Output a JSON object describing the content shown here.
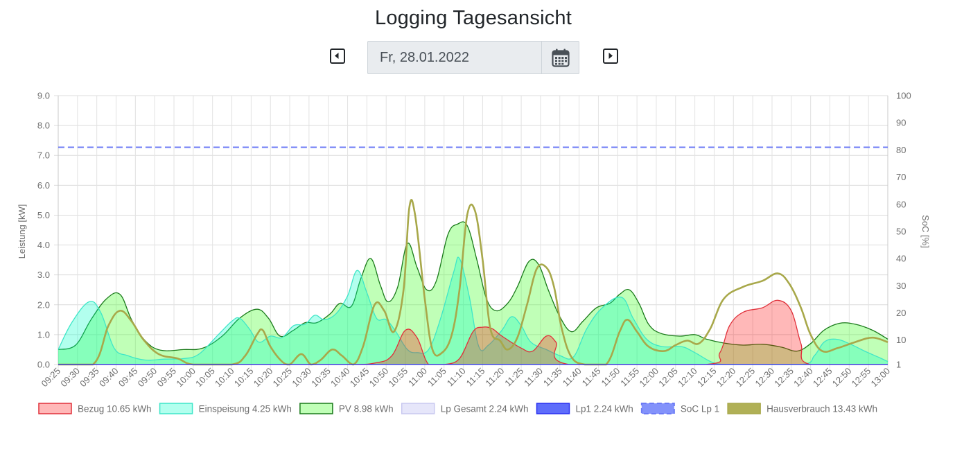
{
  "page": {
    "title": "Logging Tagesansicht"
  },
  "date_picker": {
    "value": "Fr, 28.01.2022"
  },
  "icons": {
    "prev": "caret-left-square-icon",
    "next": "caret-right-square-icon",
    "calendar": "calendar-icon"
  },
  "chart_data": {
    "type": "area",
    "title": "",
    "ylabel": "Leistung [kW]",
    "y2label": "SoC [%]",
    "ylim": [
      0,
      9
    ],
    "y_ticks": [
      "0.0",
      "1.0",
      "2.0",
      "3.0",
      "4.0",
      "5.0",
      "6.0",
      "7.0",
      "8.0",
      "9.0"
    ],
    "y2_ticks": [
      "1",
      "10",
      "20",
      "30",
      "40",
      "50",
      "60",
      "70",
      "80",
      "90",
      "100"
    ],
    "y2_tick_values": [
      1,
      10,
      20,
      30,
      40,
      50,
      60,
      70,
      80,
      90,
      100
    ],
    "y2lim": [
      1,
      100
    ],
    "grid": true,
    "legend_position": "bottom",
    "x_labels": [
      "09:25",
      "09:30",
      "09:35",
      "09:40",
      "09:45",
      "09:50",
      "09:55",
      "10:00",
      "10:05",
      "10:10",
      "10:15",
      "10:20",
      "10:25",
      "10:30",
      "10:35",
      "10:40",
      "10:45",
      "10:50",
      "10:55",
      "11:00",
      "11:05",
      "11:10",
      "11:15",
      "11:20",
      "11:25",
      "11:30",
      "11:35",
      "11:40",
      "11:45",
      "11:50",
      "11:55",
      "12:00",
      "12:05",
      "12:10",
      "12:15",
      "12:20",
      "12:25",
      "12:30",
      "12:35",
      "12:40",
      "12:45",
      "12:50",
      "12:55",
      "13:00"
    ],
    "series": [
      {
        "name": "Bezug 10.65 kWh",
        "axis": "left",
        "fill": "rgba(255,0,0,0.28)",
        "stroke": "#e0303a",
        "dash": false,
        "fill_area": true,
        "values": [
          [
            0,
            0
          ],
          [
            5,
            0
          ],
          [
            10,
            0
          ],
          [
            15,
            0
          ],
          [
            16.5,
            0.06
          ],
          [
            17.3,
            0.3
          ],
          [
            18,
            1.15
          ],
          [
            18.6,
            0.9
          ],
          [
            19.2,
            0
          ],
          [
            20,
            0
          ],
          [
            20.8,
            0.2
          ],
          [
            21.5,
            1.1
          ],
          [
            22,
            1.25
          ],
          [
            22.5,
            1.2
          ],
          [
            23,
            0.95
          ],
          [
            24,
            0.55
          ],
          [
            24.6,
            0.45
          ],
          [
            25.3,
            0.95
          ],
          [
            25.8,
            0.75
          ],
          [
            26.5,
            0
          ],
          [
            33.5,
            0
          ],
          [
            34.3,
            0.4
          ],
          [
            34.8,
            1.3
          ],
          [
            35.5,
            1.75
          ],
          [
            36.5,
            1.9
          ],
          [
            37.3,
            2.15
          ],
          [
            38,
            1.8
          ],
          [
            38.5,
            0.7
          ],
          [
            39,
            0
          ],
          [
            43,
            0
          ]
        ]
      },
      {
        "name": "Einspeisung 4.25 kWh",
        "axis": "left",
        "fill": "rgba(0,255,200,0.30)",
        "stroke": "#3ee6c8",
        "dash": false,
        "fill_area": true,
        "values": [
          [
            0,
            0.5
          ],
          [
            0.7,
            1.4
          ],
          [
            1.6,
            2.1
          ],
          [
            2.2,
            1.75
          ],
          [
            2.9,
            0.55
          ],
          [
            3.6,
            0.3
          ],
          [
            4.5,
            0.15
          ],
          [
            5.5,
            0.18
          ],
          [
            6.5,
            0.2
          ],
          [
            7.3,
            0.35
          ],
          [
            8.3,
            1.0
          ],
          [
            9,
            1.45
          ],
          [
            9.4,
            1.55
          ],
          [
            9.9,
            1.2
          ],
          [
            10.4,
            0.75
          ],
          [
            11,
            0.95
          ],
          [
            11.6,
            0.9
          ],
          [
            12.2,
            1.3
          ],
          [
            12.8,
            1.35
          ],
          [
            13.3,
            1.65
          ],
          [
            13.8,
            1.5
          ],
          [
            14.4,
            1.7
          ],
          [
            15,
            2.3
          ],
          [
            15.5,
            3.15
          ],
          [
            16,
            2.4
          ],
          [
            16.5,
            1.55
          ],
          [
            17,
            1.5
          ],
          [
            17.5,
            1.1
          ],
          [
            18.1,
            0.5
          ],
          [
            18.6,
            0.4
          ],
          [
            19.2,
            0.5
          ],
          [
            19.8,
            1.5
          ],
          [
            20.5,
            3.1
          ],
          [
            20.8,
            3.55
          ],
          [
            21.3,
            2.3
          ],
          [
            21.8,
            0.6
          ],
          [
            22.3,
            0.65
          ],
          [
            23,
            1.15
          ],
          [
            23.5,
            1.6
          ],
          [
            24,
            1.3
          ],
          [
            24.5,
            0.75
          ],
          [
            25.3,
            0.5
          ],
          [
            26,
            0.3
          ],
          [
            26.7,
            0.25
          ],
          [
            27.4,
            1.2
          ],
          [
            28.2,
            1.9
          ],
          [
            29.2,
            2.25
          ],
          [
            29.8,
            1.55
          ],
          [
            30.5,
            0.85
          ],
          [
            31.3,
            0.6
          ],
          [
            32.3,
            0.6
          ],
          [
            33,
            0.4
          ],
          [
            34,
            0.05
          ],
          [
            35,
            0
          ],
          [
            38.5,
            0
          ],
          [
            39.2,
            0.3
          ],
          [
            39.7,
            0.75
          ],
          [
            40.3,
            0.85
          ],
          [
            41,
            0.7
          ],
          [
            41.8,
            0.45
          ],
          [
            42.5,
            0.25
          ],
          [
            43,
            0.1
          ]
        ]
      },
      {
        "name": "PV 8.98 kWh",
        "axis": "left",
        "fill": "rgba(60,255,30,0.32)",
        "stroke": "#1a7a1a",
        "dash": false,
        "fill_area": true,
        "values": [
          [
            0,
            0.5
          ],
          [
            0.9,
            0.65
          ],
          [
            1.7,
            1.5
          ],
          [
            2.5,
            2.2
          ],
          [
            3.2,
            2.35
          ],
          [
            3.8,
            1.5
          ],
          [
            4.5,
            0.8
          ],
          [
            5.3,
            0.48
          ],
          [
            6.5,
            0.5
          ],
          [
            7.5,
            0.55
          ],
          [
            8.5,
            0.95
          ],
          [
            9.4,
            1.55
          ],
          [
            10.3,
            1.85
          ],
          [
            10.9,
            1.55
          ],
          [
            11.5,
            0.95
          ],
          [
            12.2,
            1.15
          ],
          [
            12.8,
            1.4
          ],
          [
            13.4,
            1.4
          ],
          [
            14.1,
            1.7
          ],
          [
            14.6,
            2.05
          ],
          [
            15.2,
            1.95
          ],
          [
            15.7,
            2.9
          ],
          [
            16.2,
            3.55
          ],
          [
            16.7,
            2.65
          ],
          [
            17.1,
            2.1
          ],
          [
            17.6,
            2.6
          ],
          [
            18.1,
            4.05
          ],
          [
            18.6,
            3.25
          ],
          [
            19.1,
            2.5
          ],
          [
            19.6,
            2.8
          ],
          [
            20.2,
            4.35
          ],
          [
            20.7,
            4.7
          ],
          [
            21.2,
            4.65
          ],
          [
            21.7,
            3.5
          ],
          [
            22.2,
            2.2
          ],
          [
            22.7,
            1.8
          ],
          [
            23.3,
            2.05
          ],
          [
            23.8,
            2.6
          ],
          [
            24.4,
            3.45
          ],
          [
            24.9,
            3.35
          ],
          [
            25.4,
            2.5
          ],
          [
            26,
            1.6
          ],
          [
            26.6,
            1.1
          ],
          [
            27.2,
            1.45
          ],
          [
            27.9,
            1.9
          ],
          [
            28.6,
            2.05
          ],
          [
            29.1,
            2.35
          ],
          [
            29.6,
            2.5
          ],
          [
            30.1,
            2.05
          ],
          [
            30.6,
            1.35
          ],
          [
            31.2,
            1.05
          ],
          [
            32.2,
            0.95
          ],
          [
            33,
            1.0
          ],
          [
            33.6,
            0.85
          ],
          [
            34.5,
            0.72
          ],
          [
            35.5,
            0.65
          ],
          [
            36.5,
            0.68
          ],
          [
            37.5,
            0.58
          ],
          [
            38.3,
            0.45
          ],
          [
            39,
            0.7
          ],
          [
            39.7,
            1.15
          ],
          [
            40.5,
            1.38
          ],
          [
            41.3,
            1.35
          ],
          [
            42.2,
            1.15
          ],
          [
            43,
            0.85
          ]
        ]
      },
      {
        "name": "Lp Gesamt 2.24 kWh",
        "axis": "left",
        "fill": "rgba(200,200,245,0.45)",
        "stroke": "#c8c8f0",
        "dash": false,
        "fill_area": true,
        "values": [
          [
            0,
            0
          ],
          [
            43,
            0
          ]
        ]
      },
      {
        "name": "Lp1 2.24 kWh",
        "axis": "left",
        "fill": "rgba(40,60,250,0.75)",
        "stroke": "#2830f0",
        "dash": false,
        "fill_area": false,
        "values": [
          [
            0,
            0
          ],
          [
            43,
            0
          ]
        ]
      },
      {
        "name": "SoC Lp 1",
        "axis": "right",
        "fill": "rgba(90,110,250,0.75)",
        "stroke": "#6c7bf5",
        "dash": true,
        "fill_area": false,
        "values": [
          [
            0,
            81
          ],
          [
            43,
            81
          ]
        ]
      },
      {
        "name": "Hausverbrauch 13.43 kWh",
        "axis": "left",
        "fill": "rgba(150,150,30,0.75)",
        "stroke": "#a8a84a",
        "dash": false,
        "fill_area": false,
        "values": [
          [
            0,
            0
          ],
          [
            1.8,
            0
          ],
          [
            2.6,
            1.3
          ],
          [
            3.2,
            1.8
          ],
          [
            3.8,
            1.45
          ],
          [
            4.4,
            0.85
          ],
          [
            5.2,
            0.35
          ],
          [
            6.2,
            0.2
          ],
          [
            7,
            0
          ],
          [
            9,
            0
          ],
          [
            9.7,
            0.3
          ],
          [
            10.3,
            1.0
          ],
          [
            10.6,
            1.15
          ],
          [
            11,
            0.6
          ],
          [
            11.6,
            0.1
          ],
          [
            12,
            0
          ],
          [
            12.6,
            0.35
          ],
          [
            13.1,
            0
          ],
          [
            13.6,
            0.15
          ],
          [
            14.2,
            0.5
          ],
          [
            14.7,
            0.3
          ],
          [
            15.3,
            0
          ],
          [
            15.8,
            0.6
          ],
          [
            16.4,
            2.0
          ],
          [
            16.9,
            1.8
          ],
          [
            17.4,
            1.1
          ],
          [
            17.9,
            2.5
          ],
          [
            18.2,
            5.25
          ],
          [
            18.5,
            5.0
          ],
          [
            19,
            2.2
          ],
          [
            19.4,
            0.5
          ],
          [
            19.9,
            0.4
          ],
          [
            20.4,
            1.0
          ],
          [
            20.8,
            2.5
          ],
          [
            21.2,
            5.0
          ],
          [
            21.6,
            5.15
          ],
          [
            22,
            3.5
          ],
          [
            22.4,
            1.2
          ],
          [
            22.9,
            0.8
          ],
          [
            23.3,
            0.5
          ],
          [
            23.8,
            0.9
          ],
          [
            24.3,
            2.0
          ],
          [
            24.8,
            3.2
          ],
          [
            25.3,
            3.25
          ],
          [
            25.7,
            2.6
          ],
          [
            26.1,
            1.2
          ],
          [
            26.6,
            0.25
          ],
          [
            27.3,
            0
          ],
          [
            28.4,
            0
          ],
          [
            29.1,
            1.1
          ],
          [
            29.5,
            1.5
          ],
          [
            30,
            1.1
          ],
          [
            30.6,
            0.6
          ],
          [
            31.4,
            0.45
          ],
          [
            32,
            0.65
          ],
          [
            32.6,
            0.8
          ],
          [
            33.2,
            0.7
          ],
          [
            33.8,
            1.2
          ],
          [
            34.5,
            2.2
          ],
          [
            35.5,
            2.6
          ],
          [
            36.5,
            2.8
          ],
          [
            37.3,
            3.05
          ],
          [
            37.9,
            2.7
          ],
          [
            38.5,
            1.9
          ],
          [
            39,
            1.0
          ],
          [
            39.6,
            0.45
          ],
          [
            40.4,
            0.55
          ],
          [
            41.3,
            0.75
          ],
          [
            42.2,
            0.9
          ],
          [
            43,
            0.75
          ]
        ]
      }
    ]
  }
}
